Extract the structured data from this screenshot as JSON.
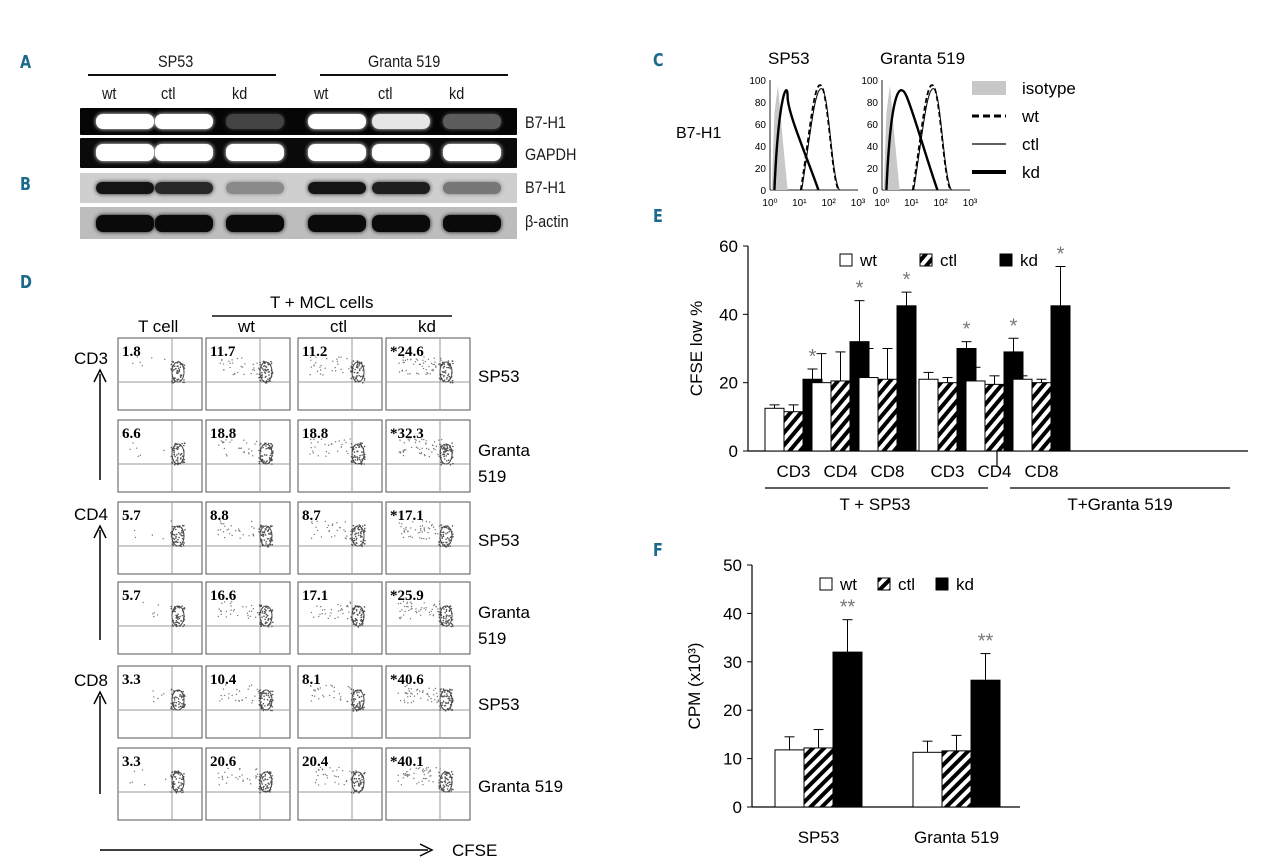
{
  "panels": {
    "A": "A",
    "B": "B",
    "C": "C",
    "D": "D",
    "E": "E",
    "F": "F"
  },
  "gel": {
    "groups": [
      "SP53",
      "Granta 519"
    ],
    "lanes": [
      "wt",
      "ctl",
      "kd",
      "wt",
      "ctl",
      "kd"
    ],
    "rowA": [
      "B7-H1",
      "GAPDH"
    ],
    "rowB": [
      "B7-H1",
      "β-actin"
    ],
    "b7h1_intensity": [
      1.0,
      1.0,
      0.25,
      1.0,
      0.9,
      0.35
    ],
    "western_intensity": [
      0.95,
      0.85,
      0.35,
      0.95,
      0.9,
      0.45
    ]
  },
  "histo": {
    "titles": [
      "SP53",
      "Granta 519"
    ],
    "ylabel": "B7-H1",
    "yticks": [
      "100",
      "80",
      "60",
      "40",
      "20",
      "0"
    ],
    "xticks": [
      "10⁰",
      "10¹",
      "10²",
      "10³"
    ],
    "legend": [
      "isotype",
      "wt",
      "ctl",
      "kd"
    ]
  },
  "flow": {
    "col_headers": [
      "T cell",
      "wt",
      "ctl",
      "kd"
    ],
    "group_header": "T + MCL cells",
    "row_axes": [
      "CD3",
      "CD4",
      "CD8"
    ],
    "x_axis": "CFSE",
    "rows": [
      {
        "label": "SP53",
        "values": [
          "1.8",
          "11.7",
          "11.2",
          "*24.6"
        ]
      },
      {
        "label": "Granta\n519",
        "values": [
          "6.6",
          "18.8",
          "18.8",
          "*32.3"
        ]
      },
      {
        "label": "SP53",
        "values": [
          "5.7",
          "8.8",
          "8.7",
          "*17.1"
        ]
      },
      {
        "label": "Granta\n519",
        "values": [
          "5.7",
          "16.6",
          "17.1",
          "*25.9"
        ]
      },
      {
        "label": "SP53",
        "values": [
          "3.3",
          "10.4",
          "8.1",
          "*40.6"
        ]
      },
      {
        "label": "Granta 519",
        "values": [
          "3.3",
          "20.6",
          "20.4",
          "*40.1"
        ]
      }
    ]
  },
  "chart_data": [
    {
      "type": "bar",
      "ylabel": "CFSE low %",
      "ylim": [
        0,
        60
      ],
      "yticks": [
        0,
        20,
        40,
        60
      ],
      "categories": [
        "CD3",
        "CD4",
        "CD8",
        "CD3",
        "CD4",
        "CD8"
      ],
      "groups": [
        "T + SP53",
        "T+Granta 519"
      ],
      "series": [
        {
          "name": "wt",
          "values": [
            12.5,
            20,
            21.5,
            21,
            20.5,
            21
          ],
          "errors": [
            1,
            8.5,
            8.5,
            2,
            4,
            1
          ]
        },
        {
          "name": "ctl",
          "values": [
            11.5,
            20.5,
            21,
            20,
            19.5,
            20
          ],
          "errors": [
            2,
            8.5,
            9,
            1.5,
            2.5,
            1
          ]
        },
        {
          "name": "kd",
          "values": [
            21,
            32,
            42.5,
            30,
            29,
            42.5
          ],
          "errors": [
            3,
            12,
            4,
            2,
            4,
            11.5
          ]
        }
      ],
      "significant": [
        true,
        true,
        true,
        true,
        true,
        true
      ],
      "sig_mark": "*"
    },
    {
      "type": "bar",
      "ylabel": "CPM (x10³)",
      "ylim": [
        0,
        50
      ],
      "yticks": [
        0,
        10,
        20,
        30,
        40,
        50
      ],
      "categories": [
        "SP53",
        "Granta 519"
      ],
      "series": [
        {
          "name": "wt",
          "values": [
            11.8,
            11.3
          ],
          "errors": [
            2.7,
            2.3
          ]
        },
        {
          "name": "ctl",
          "values": [
            12.2,
            11.6
          ],
          "errors": [
            3.8,
            3.2
          ]
        },
        {
          "name": "kd",
          "values": [
            32,
            26.2
          ],
          "errors": [
            6.7,
            5.5
          ]
        }
      ],
      "sig_mark": "**"
    }
  ]
}
